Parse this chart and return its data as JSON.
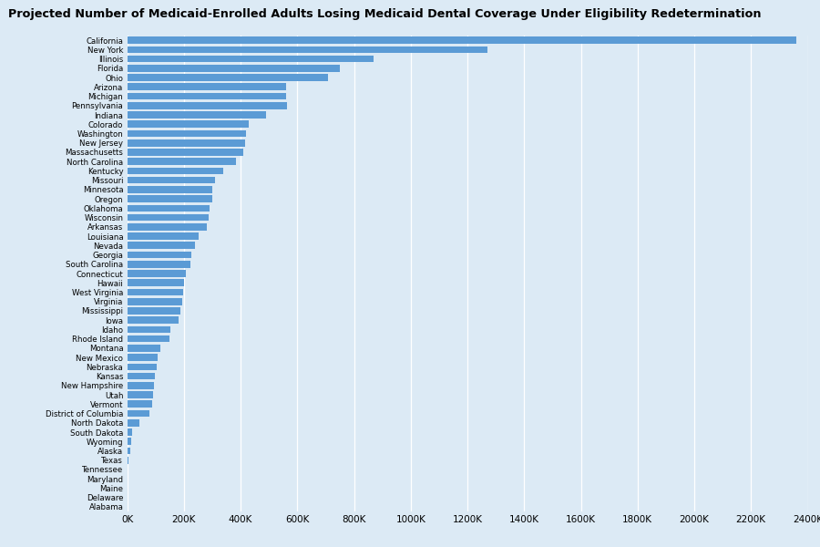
{
  "title": "Projected Number of Medicaid-Enrolled Adults Losing Medicaid Dental Coverage Under Eligibility Redetermination",
  "background_color": "#dceaf5",
  "bar_color": "#5b9bd5",
  "states": [
    "California",
    "New York",
    "Illinois",
    "Florida",
    "Ohio",
    "Arizona",
    "Michigan",
    "Pennsylvania",
    "Indiana",
    "Colorado",
    "Washington",
    "New Jersey",
    "Massachusetts",
    "North Carolina",
    "Kentucky",
    "Missouri",
    "Minnesota",
    "Oregon",
    "Oklahoma",
    "Wisconsin",
    "Arkansas",
    "Louisiana",
    "Nevada",
    "Georgia",
    "South Carolina",
    "Connecticut",
    "Hawaii",
    "West Virginia",
    "Virginia",
    "Mississippi",
    "Iowa",
    "Idaho",
    "Rhode Island",
    "Montana",
    "New Mexico",
    "Nebraska",
    "Kansas",
    "New Hampshire",
    "Utah",
    "Vermont",
    "District of Columbia",
    "North Dakota",
    "South Dakota",
    "Wyoming",
    "Alaska",
    "Texas",
    "Tennessee",
    "Maryland",
    "Maine",
    "Delaware",
    "Alabama"
  ],
  "values": [
    2360000,
    1270000,
    870000,
    750000,
    710000,
    560000,
    560000,
    565000,
    490000,
    430000,
    420000,
    415000,
    410000,
    385000,
    340000,
    310000,
    300000,
    300000,
    292000,
    288000,
    282000,
    252000,
    238000,
    228000,
    222000,
    208000,
    202000,
    198000,
    193000,
    188000,
    182000,
    152000,
    148000,
    118000,
    108000,
    103000,
    99000,
    96000,
    93000,
    88000,
    78000,
    42000,
    18000,
    13000,
    11000,
    4000,
    1500,
    1200,
    1000,
    800,
    500
  ],
  "xlim": [
    0,
    2400000
  ],
  "xtick_interval": 200000
}
